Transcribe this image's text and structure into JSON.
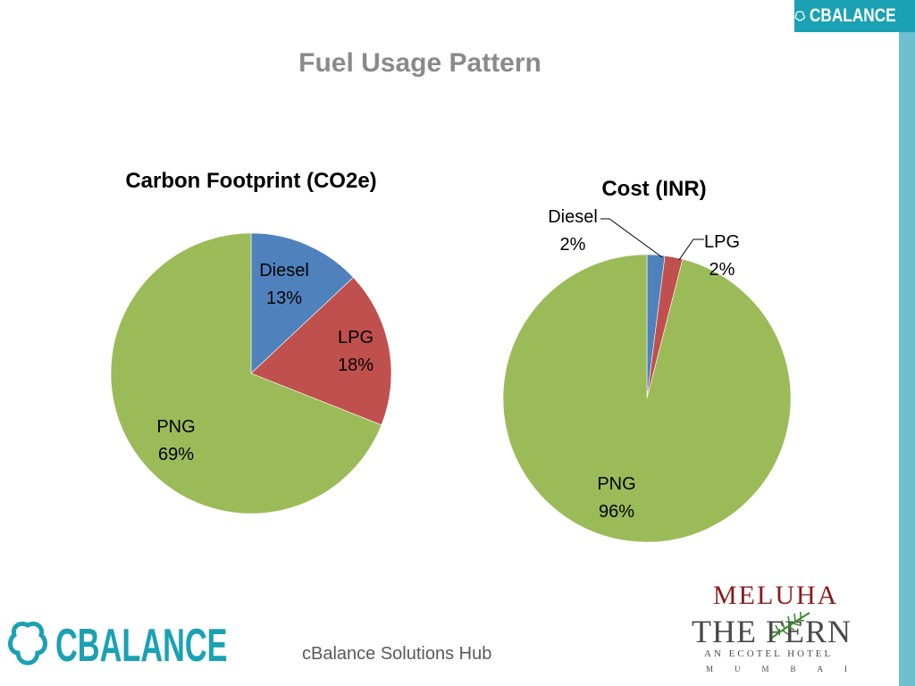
{
  "slide": {
    "title": "Fuel Usage Pattern",
    "footer": "cBalance Solutions Hub",
    "brand_logo_text": "CBALANCE",
    "hotel_logo": {
      "line1": "MELUHA",
      "line2": "THE FERN",
      "line3": "AN ECOTEL HOTEL",
      "line4": "MUMBAI"
    }
  },
  "colors": {
    "diesel": "#4f81bd",
    "lpg": "#c0504d",
    "png": "#9bbb59",
    "accent": "#1aa1b3",
    "title_gray": "#8a8a8a"
  },
  "icons": {
    "brand_logo_top": "cbalance-logo-icon",
    "brand_logo_bottom": "cbalance-logo-icon",
    "hotel_logo": "fern-leaf-icon"
  },
  "chart_data": [
    {
      "type": "pie",
      "title": "Carbon Footprint (CO2e)",
      "categories": [
        "Diesel",
        "LPG",
        "PNG"
      ],
      "values": [
        13,
        18,
        69
      ],
      "value_labels": [
        "13%",
        "18%",
        "69%"
      ],
      "legend": "none"
    },
    {
      "type": "pie",
      "title": "Cost (INR)",
      "categories": [
        "Diesel",
        "LPG",
        "PNG"
      ],
      "values": [
        2,
        2,
        96
      ],
      "value_labels": [
        "2%",
        "2%",
        "96%"
      ],
      "legend": "none"
    }
  ]
}
